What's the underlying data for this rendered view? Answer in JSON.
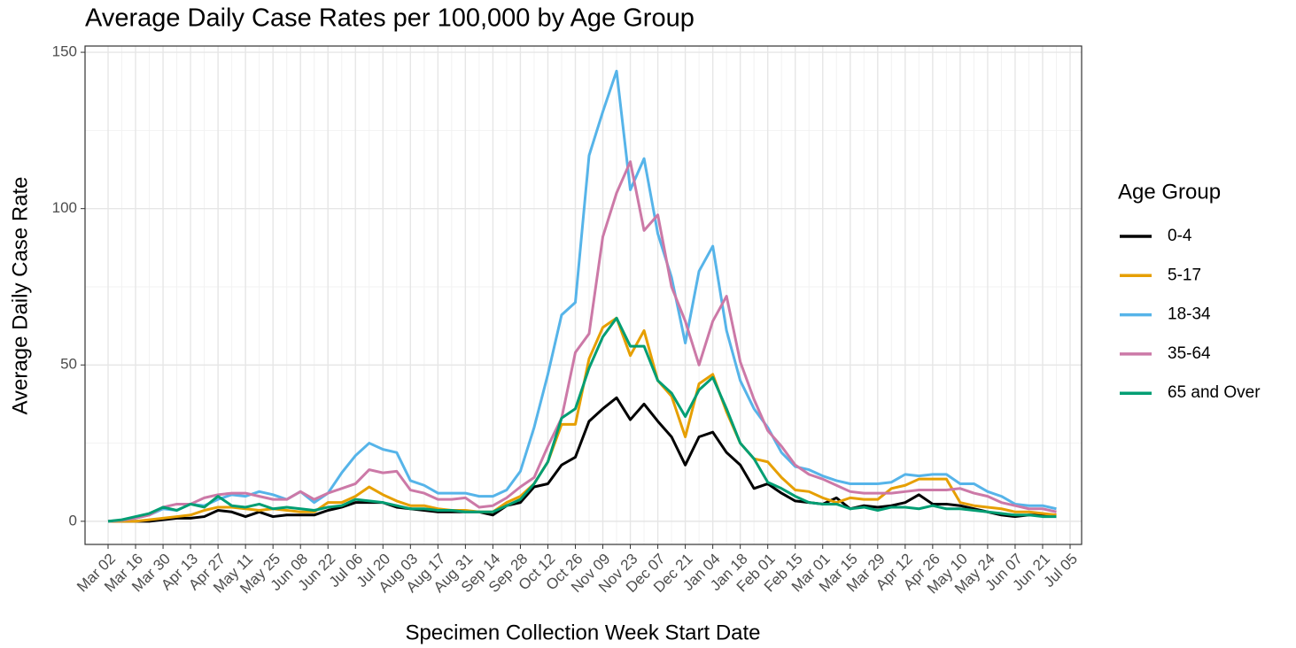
{
  "chart_data": {
    "type": "line",
    "title": "Average Daily Case Rates per 100,000 by Age Group",
    "x_label": "Specimen Collection Week Start Date",
    "y_label": "Average Daily Case Rate",
    "legend_title": "Age Group",
    "legend_position": "right",
    "grid": true,
    "categories": [
      "Mar 02",
      null,
      "Mar 16",
      null,
      "Mar 30",
      null,
      "Apr 13",
      null,
      "Apr 27",
      null,
      "May 11",
      null,
      "May 25",
      null,
      "Jun 08",
      null,
      "Jun 22",
      null,
      "Jul 06",
      null,
      "Jul 20",
      null,
      "Aug 03",
      null,
      "Aug 17",
      null,
      "Aug 31",
      null,
      "Sep 14",
      null,
      "Sep 28",
      null,
      "Oct 12",
      null,
      "Oct 26",
      null,
      "Nov 09",
      null,
      "Nov 23",
      null,
      "Dec 07",
      null,
      "Dec 21",
      null,
      "Jan 04",
      null,
      "Jan 18",
      null,
      "Feb 01",
      null,
      "Feb 15",
      null,
      "Mar 01",
      null,
      "Mar 15",
      null,
      "Mar 29",
      null,
      "Apr 12",
      null,
      "Apr 26",
      null,
      "May 10",
      null,
      "May 24",
      null,
      "Jun 07",
      null,
      "Jun 21",
      null,
      "Jul 05"
    ],
    "ylim": [
      -7.4,
      152
    ],
    "yticks": [
      0,
      50,
      100,
      150
    ],
    "series": [
      {
        "name": "0-4",
        "color": "#000000",
        "values": [
          0,
          0,
          0,
          0,
          0.5,
          1,
          1,
          1.5,
          3.5,
          3,
          1.5,
          3,
          1.5,
          2,
          2,
          2,
          3.5,
          4.5,
          6,
          6,
          6,
          4.5,
          4,
          3.5,
          3,
          3,
          3,
          3,
          2,
          5,
          6,
          11,
          12,
          18,
          20.5,
          32,
          36,
          39.5,
          32.5,
          37.5,
          32,
          27,
          18,
          27,
          28.5,
          22,
          18,
          10.5,
          12,
          9,
          6.5,
          6,
          5.5,
          7.5,
          4,
          5,
          4.5,
          5,
          6,
          8.5,
          5.5,
          5.5,
          5,
          4,
          3,
          2,
          1.5,
          2,
          2,
          2,
          null
        ]
      },
      {
        "name": "5-17",
        "color": "#E69F00",
        "values": [
          0,
          0,
          0,
          0.5,
          1,
          1.5,
          2,
          3.5,
          4.5,
          4.5,
          4,
          3.5,
          4,
          3.5,
          3,
          3,
          6,
          6,
          8,
          11,
          8.5,
          6.5,
          5,
          5,
          4,
          3.5,
          3.5,
          3,
          3,
          6,
          8,
          12,
          19,
          31,
          31,
          52,
          62,
          65,
          53,
          61,
          45,
          40,
          27,
          44,
          47,
          35,
          25,
          20,
          19,
          14,
          10,
          9.5,
          7.5,
          6,
          7.5,
          7,
          7,
          10.5,
          11.5,
          13.5,
          13.5,
          13.5,
          6,
          5,
          4.5,
          4,
          3,
          3,
          2.5,
          2,
          null
        ]
      },
      {
        "name": "18-34",
        "color": "#56B4E9",
        "values": [
          0,
          0.3,
          1,
          2,
          4,
          3.5,
          5.5,
          5,
          7,
          8.5,
          8,
          9.5,
          8.5,
          7,
          9.5,
          6,
          9,
          15.5,
          21,
          25,
          23,
          22,
          13,
          11.5,
          9,
          9,
          9,
          8,
          8,
          10,
          16,
          30,
          47,
          66,
          70,
          117,
          131,
          144,
          106,
          116,
          92,
          78,
          57,
          80,
          88,
          61,
          45,
          36,
          30,
          22,
          17.5,
          16.5,
          14.5,
          13,
          12,
          12,
          12,
          12.5,
          15,
          14.5,
          15,
          15,
          12,
          12,
          9.5,
          8,
          5.5,
          5,
          5,
          4,
          null
        ]
      },
      {
        "name": "35-64",
        "color": "#CC79A7",
        "values": [
          0,
          0.3,
          1,
          2,
          4.5,
          5.5,
          5.5,
          7.5,
          8.5,
          9,
          9,
          8,
          7,
          7,
          9.5,
          7,
          9,
          10.5,
          12,
          16.5,
          15.5,
          16,
          10,
          9,
          7,
          7,
          7.5,
          4.5,
          5,
          7.5,
          11,
          14,
          24,
          33,
          54,
          60,
          91,
          105,
          115,
          93,
          98,
          75,
          64,
          50,
          64,
          72,
          51,
          39,
          29,
          24,
          18,
          15,
          13.5,
          11.5,
          9.5,
          9,
          9,
          9,
          9.5,
          10,
          10,
          10,
          10.5,
          9,
          8,
          6,
          5,
          4,
          4,
          3,
          null
        ]
      },
      {
        "name": "65 and Over",
        "color": "#009E73",
        "values": [
          0,
          0.5,
          1.5,
          2.5,
          4.5,
          3.5,
          5.5,
          4.5,
          8,
          5,
          4.5,
          5.5,
          4,
          4.5,
          4,
          3.5,
          4.5,
          5,
          7,
          6.5,
          6,
          5,
          4,
          4,
          3.5,
          3.5,
          3,
          3,
          3,
          5,
          7,
          12,
          19,
          33,
          36,
          49,
          59,
          65,
          56,
          56,
          45,
          41,
          33.5,
          42,
          46,
          36,
          25,
          20,
          12.5,
          10.5,
          8,
          6,
          5.5,
          5.5,
          4,
          4.5,
          3.5,
          4.5,
          4.5,
          4,
          5,
          4,
          4,
          3.5,
          3,
          2.5,
          2,
          2,
          1.5,
          1.5,
          null
        ]
      }
    ]
  }
}
